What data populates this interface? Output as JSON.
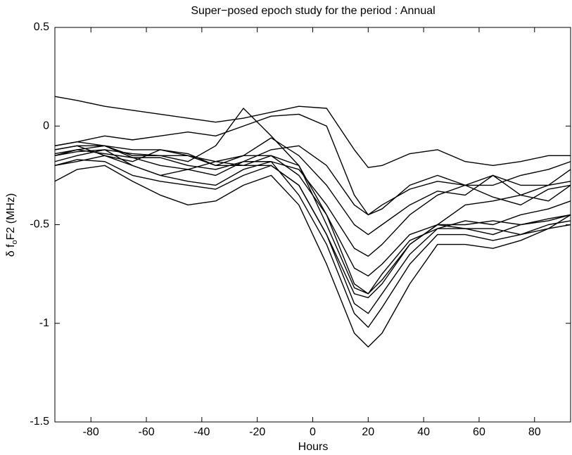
{
  "chart_data": {
    "type": "line",
    "title": "Super−posed epoch study for the period : Annual",
    "xlabel": "Hours",
    "ylabel_parts": [
      "δ f",
      "o",
      "F2 (MHz)"
    ],
    "x": [
      -93,
      -85,
      -75,
      -65,
      -55,
      -45,
      -35,
      -25,
      -15,
      -5,
      5,
      15,
      20,
      25,
      35,
      45,
      55,
      65,
      75,
      85,
      93
    ],
    "xlim": [
      -93,
      93
    ],
    "xticks": [
      -80,
      -60,
      -40,
      -20,
      0,
      20,
      40,
      60,
      80
    ],
    "ylim": [
      -1.5,
      0.5
    ],
    "yticks": [
      -1.5,
      -1,
      -0.5,
      0,
      0.5
    ],
    "grid": false,
    "series": [
      {
        "color": "#000000",
        "values": [
          0.15,
          0.13,
          0.1,
          0.08,
          0.06,
          0.04,
          0.02,
          0.04,
          0.07,
          0.1,
          0.09,
          -0.12,
          -0.21,
          -0.2,
          -0.14,
          -0.12,
          -0.18,
          -0.2,
          -0.18,
          -0.15,
          -0.15
        ]
      },
      {
        "color": "#000000",
        "values": [
          -0.1,
          -0.08,
          -0.05,
          -0.07,
          -0.05,
          -0.03,
          -0.05,
          0.0,
          0.05,
          0.06,
          0.0,
          -0.35,
          -0.45,
          -0.42,
          -0.3,
          -0.25,
          -0.3,
          -0.3,
          -0.25,
          -0.22,
          -0.18
        ]
      },
      {
        "color": "#000000",
        "values": [
          -0.15,
          -0.13,
          -0.12,
          -0.14,
          -0.15,
          -0.18,
          -0.1,
          0.09,
          -0.05,
          -0.2,
          -0.5,
          -0.82,
          -0.85,
          -0.78,
          -0.6,
          -0.5,
          -0.5,
          -0.48,
          -0.5,
          -0.47,
          -0.45
        ]
      },
      {
        "color": "#000000",
        "values": [
          -0.12,
          -0.1,
          -0.15,
          -0.18,
          -0.12,
          -0.15,
          -0.2,
          -0.15,
          -0.06,
          -0.15,
          -0.3,
          -0.5,
          -0.55,
          -0.5,
          -0.4,
          -0.33,
          -0.35,
          -0.25,
          -0.35,
          -0.38,
          -0.3
        ]
      },
      {
        "color": "#000000",
        "values": [
          -0.2,
          -0.18,
          -0.15,
          -0.2,
          -0.25,
          -0.22,
          -0.18,
          -0.2,
          -0.2,
          -0.3,
          -0.55,
          -0.9,
          -0.95,
          -0.85,
          -0.65,
          -0.52,
          -0.52,
          -0.55,
          -0.5,
          -0.48,
          -0.45
        ]
      },
      {
        "color": "#000000",
        "values": [
          -0.28,
          -0.22,
          -0.2,
          -0.28,
          -0.35,
          -0.4,
          -0.38,
          -0.3,
          -0.25,
          -0.4,
          -0.7,
          -1.05,
          -1.12,
          -1.05,
          -0.8,
          -0.6,
          -0.6,
          -0.62,
          -0.58,
          -0.52,
          -0.45
        ]
      },
      {
        "color": "#000000",
        "values": [
          -0.18,
          -0.15,
          -0.12,
          -0.2,
          -0.25,
          -0.28,
          -0.3,
          -0.22,
          -0.18,
          -0.35,
          -0.6,
          -0.95,
          -1.02,
          -0.92,
          -0.7,
          -0.55,
          -0.55,
          -0.58,
          -0.55,
          -0.5,
          -0.48
        ]
      },
      {
        "color": "#000000",
        "values": [
          -0.12,
          -0.1,
          -0.1,
          -0.15,
          -0.15,
          -0.15,
          -0.18,
          -0.15,
          -0.15,
          -0.25,
          -0.45,
          -0.72,
          -0.76,
          -0.7,
          -0.55,
          -0.5,
          -0.4,
          -0.38,
          -0.35,
          -0.3,
          -0.28
        ]
      },
      {
        "color": "#000000",
        "values": [
          -0.15,
          -0.12,
          -0.1,
          -0.16,
          -0.2,
          -0.22,
          -0.25,
          -0.18,
          -0.18,
          -0.22,
          -0.4,
          -0.62,
          -0.66,
          -0.6,
          -0.45,
          -0.35,
          -0.3,
          -0.25,
          -0.3,
          -0.3,
          -0.22
        ]
      },
      {
        "color": "#000000",
        "values": [
          -0.2,
          -0.17,
          -0.18,
          -0.25,
          -0.28,
          -0.3,
          -0.32,
          -0.25,
          -0.2,
          -0.3,
          -0.55,
          -0.85,
          -0.87,
          -0.8,
          -0.6,
          -0.5,
          -0.52,
          -0.52,
          -0.55,
          -0.52,
          -0.5
        ]
      },
      {
        "color": "#000000",
        "values": [
          -0.1,
          -0.08,
          -0.1,
          -0.12,
          -0.12,
          -0.14,
          -0.2,
          -0.2,
          -0.15,
          -0.2,
          -0.45,
          -0.8,
          -0.85,
          -0.75,
          -0.58,
          -0.52,
          -0.48,
          -0.5,
          -0.45,
          -0.42,
          -0.38
        ]
      },
      {
        "color": "#000000",
        "values": [
          -0.14,
          -0.12,
          -0.14,
          -0.16,
          -0.16,
          -0.2,
          -0.22,
          -0.18,
          -0.12,
          -0.1,
          -0.2,
          -0.4,
          -0.45,
          -0.4,
          -0.32,
          -0.28,
          -0.3,
          -0.36,
          -0.4,
          -0.32,
          -0.3
        ]
      }
    ]
  }
}
